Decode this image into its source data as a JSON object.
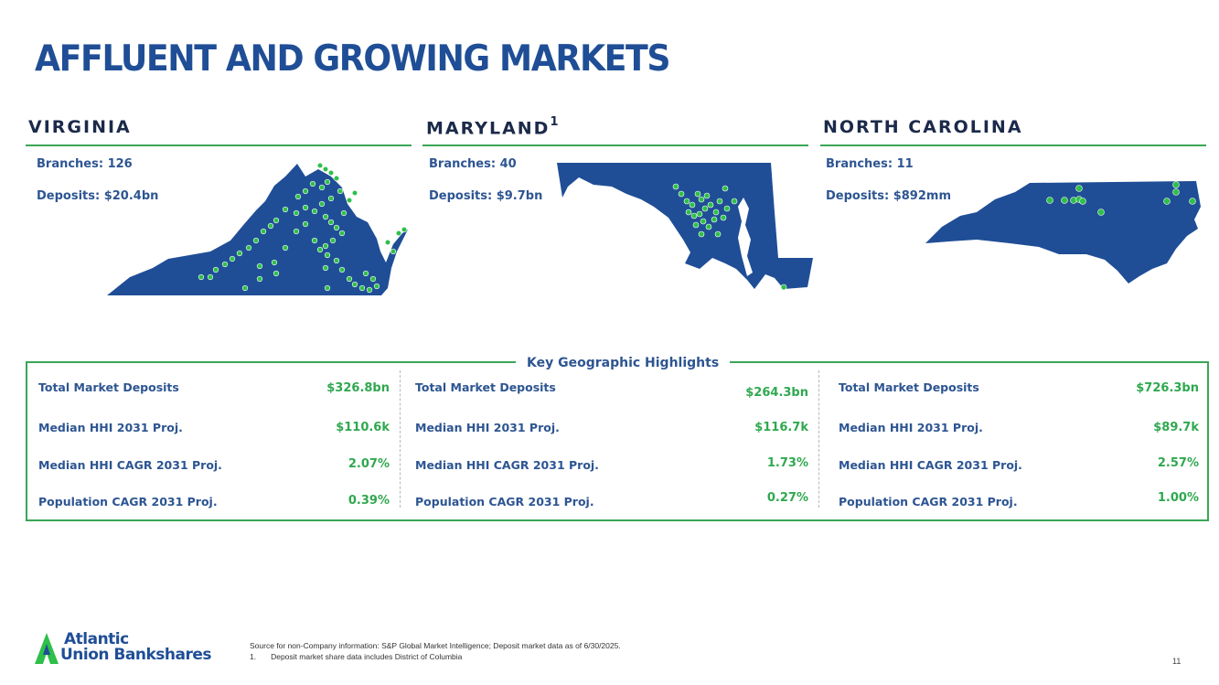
{
  "title": "AFFLUENT AND GROWING MARKETS",
  "states": [
    {
      "name": "VIRGINIA",
      "superscript": "",
      "branches": "Branches: 126",
      "deposits": "Deposits: $20.4bn"
    },
    {
      "name": "MARYLAND",
      "superscript": "1",
      "branches": "Branches: 40",
      "deposits": "Deposits: $9.7bn"
    },
    {
      "name": "NORTH CAROLINA",
      "superscript": "",
      "branches": "Branches: 11",
      "deposits": "Deposits: $892mm"
    }
  ],
  "highlights": {
    "title": "Key Geographic Highlights",
    "columns": [
      {
        "rows": [
          {
            "label": "Total Market Deposits",
            "value": "$326.8bn"
          },
          {
            "label": "Median HHI 2031 Proj.",
            "value": "$110.6k"
          },
          {
            "label": "Median HHI CAGR 2031 Proj.",
            "value": "2.07%"
          },
          {
            "label": "Population CAGR 2031 Proj.",
            "value": "0.39%"
          }
        ]
      },
      {
        "rows": [
          {
            "label": "Total Market Deposits",
            "value": "$264.3bn"
          },
          {
            "label": "Median HHI 2031 Proj.",
            "value": "$116.7k"
          },
          {
            "label": "Median HHI CAGR 2031 Proj.",
            "value": "1.73%"
          },
          {
            "label": "Population CAGR 2031 Proj.",
            "value": "0.27%"
          }
        ]
      },
      {
        "rows": [
          {
            "label": "Total Market Deposits",
            "value": "$726.3bn"
          },
          {
            "label": "Median HHI 2031 Proj.",
            "value": "$89.7k"
          },
          {
            "label": "Median HHI CAGR 2031 Proj.",
            "value": "2.57%"
          },
          {
            "label": "Population CAGR 2031 Proj.",
            "value": "1.00%"
          }
        ]
      }
    ]
  },
  "logo": {
    "line1": "Atlantic",
    "line2": "Union Bankshares"
  },
  "footnotes": {
    "source": "Source for non-Company information: S&P Global Market Intelligence; Deposit market data as of 6/30/2025.",
    "note1_number": "1.",
    "note1_text": "Deposit market share data includes District of Columbia"
  },
  "page_number": "11",
  "colors": {
    "title_blue": "#1f4e96",
    "map_blue": "#1f4e96",
    "branch_green": "#2fbf4a",
    "rule_green": "#3aa656",
    "value_green": "#2fa84f"
  }
}
